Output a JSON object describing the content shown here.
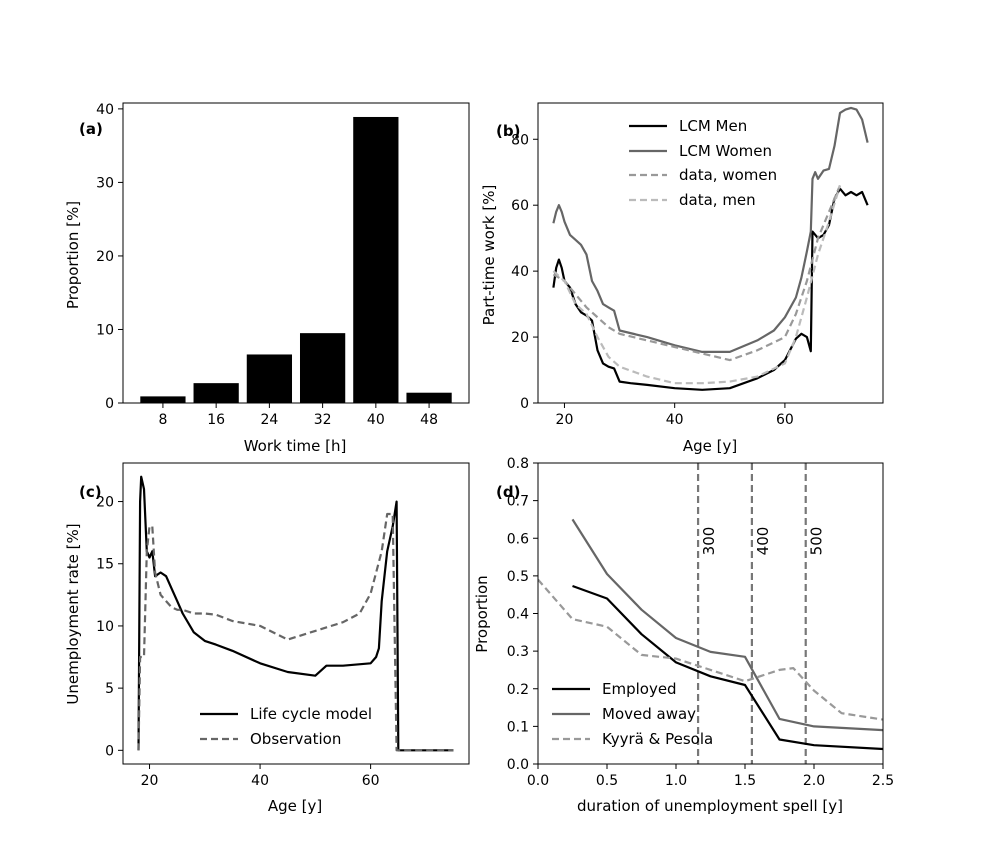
{
  "chart_data": [
    {
      "id": "a",
      "panel_label": "(a)",
      "type": "bar",
      "categories": [
        "8",
        "16",
        "24",
        "32",
        "40",
        "48"
      ],
      "values": [
        0.9,
        2.7,
        6.6,
        9.5,
        38.9,
        1.4
      ],
      "xlabel": "Work time [h]",
      "ylabel": "Proportion [%]",
      "ylim": [
        0,
        40.8
      ],
      "yticks": [
        0,
        10,
        20,
        30,
        40
      ],
      "color": "#000000"
    },
    {
      "id": "b",
      "panel_label": "(b)",
      "type": "line",
      "xlabel": "Age [y]",
      "ylabel": "Part-time work [%]",
      "xlim": [
        15.2,
        77.8
      ],
      "ylim": [
        0,
        91
      ],
      "xticks": [
        20,
        40,
        60
      ],
      "yticks": [
        0,
        20,
        40,
        60,
        80
      ],
      "legend_position": "top-center",
      "series": [
        {
          "name": "LCM Men",
          "color": "#000000",
          "dash": "solid",
          "points": [
            [
              18,
              35
            ],
            [
              18.5,
              41
            ],
            [
              19,
              43.5
            ],
            [
              19.5,
              41
            ],
            [
              20,
              37
            ],
            [
              21,
              35
            ],
            [
              22,
              30
            ],
            [
              23,
              27.5
            ],
            [
              24,
              26.5
            ],
            [
              25,
              25
            ],
            [
              26,
              16
            ],
            [
              27,
              12
            ],
            [
              28,
              11
            ],
            [
              29,
              10.5
            ],
            [
              30,
              6.5
            ],
            [
              32,
              6
            ],
            [
              35,
              5.5
            ],
            [
              40,
              4.5
            ],
            [
              45,
              4
            ],
            [
              50,
              4.5
            ],
            [
              55,
              7.5
            ],
            [
              58,
              10
            ],
            [
              60,
              13
            ],
            [
              62,
              19.5
            ],
            [
              63,
              21
            ],
            [
              64,
              20
            ],
            [
              64.7,
              15.7
            ],
            [
              65,
              52
            ],
            [
              66,
              50
            ],
            [
              67,
              51
            ],
            [
              68,
              54
            ],
            [
              69,
              62
            ],
            [
              70,
              65
            ],
            [
              71,
              63
            ],
            [
              72,
              64
            ],
            [
              73,
              63
            ],
            [
              74,
              64
            ],
            [
              75,
              60
            ]
          ]
        },
        {
          "name": "LCM Women",
          "color": "#666666",
          "dash": "solid",
          "points": [
            [
              18,
              54.5
            ],
            [
              18.5,
              58
            ],
            [
              19,
              60
            ],
            [
              19.5,
              58
            ],
            [
              20,
              55
            ],
            [
              21,
              51
            ],
            [
              22,
              49.5
            ],
            [
              23,
              48
            ],
            [
              24,
              45
            ],
            [
              25,
              37
            ],
            [
              26,
              34
            ],
            [
              27,
              30
            ],
            [
              28,
              29
            ],
            [
              29,
              28
            ],
            [
              30,
              22
            ],
            [
              35,
              20
            ],
            [
              40,
              17.5
            ],
            [
              45,
              15.5
            ],
            [
              50,
              15.5
            ],
            [
              55,
              19
            ],
            [
              58,
              22
            ],
            [
              60,
              26
            ],
            [
              62,
              32
            ],
            [
              63,
              38
            ],
            [
              64,
              46
            ],
            [
              64.7,
              52
            ],
            [
              65,
              68
            ],
            [
              65.5,
              70
            ],
            [
              66,
              68
            ],
            [
              67,
              70.5
            ],
            [
              68,
              71
            ],
            [
              69,
              78
            ],
            [
              70,
              88
            ],
            [
              71,
              89
            ],
            [
              72,
              89.5
            ],
            [
              73,
              89
            ],
            [
              74,
              86
            ],
            [
              75,
              79
            ]
          ]
        },
        {
          "name": "data, women",
          "color": "#999999",
          "dash": "dashed",
          "points": [
            [
              18,
              39
            ],
            [
              20,
              37
            ],
            [
              22,
              33
            ],
            [
              24,
              29
            ],
            [
              26,
              26
            ],
            [
              28,
              23
            ],
            [
              30,
              21
            ],
            [
              35,
              19
            ],
            [
              40,
              17
            ],
            [
              45,
              15
            ],
            [
              50,
              13
            ],
            [
              55,
              16
            ],
            [
              60,
              20
            ],
            [
              62,
              27
            ],
            [
              64,
              37
            ],
            [
              66,
              50
            ],
            [
              68,
              58
            ],
            [
              70,
              66
            ]
          ]
        },
        {
          "name": "data, men",
          "color": "#bbbbbb",
          "dash": "dashed",
          "points": [
            [
              18,
              40
            ],
            [
              20,
              37
            ],
            [
              22,
              30
            ],
            [
              24,
              27
            ],
            [
              26,
              20
            ],
            [
              28,
              14
            ],
            [
              30,
              11
            ],
            [
              35,
              8
            ],
            [
              40,
              6
            ],
            [
              45,
              6
            ],
            [
              50,
              6.5
            ],
            [
              55,
              8
            ],
            [
              60,
              12
            ],
            [
              62,
              20
            ],
            [
              64,
              32
            ],
            [
              66,
              45
            ],
            [
              68,
              55
            ],
            [
              70,
              66
            ]
          ]
        }
      ]
    },
    {
      "id": "c",
      "panel_label": "(c)",
      "type": "line",
      "xlabel": "Age [y]",
      "ylabel": "Unemployment rate [%]",
      "xlim": [
        15.2,
        77.8
      ],
      "ylim": [
        -1.1,
        23.1
      ],
      "xticks": [
        20,
        40,
        60
      ],
      "yticks": [
        0,
        5,
        10,
        15,
        20
      ],
      "legend_position": "bottom-center",
      "series": [
        {
          "name": "Life cycle model",
          "color": "#000000",
          "dash": "solid",
          "points": [
            [
              18,
              0
            ],
            [
              18.3,
              20
            ],
            [
              18.5,
              22
            ],
            [
              19,
              21
            ],
            [
              19.5,
              16
            ],
            [
              20,
              15.5
            ],
            [
              20.5,
              16
            ],
            [
              21,
              14
            ],
            [
              22,
              14.3
            ],
            [
              23,
              14
            ],
            [
              24,
              13
            ],
            [
              25,
              12
            ],
            [
              26,
              11
            ],
            [
              28,
              9.5
            ],
            [
              30,
              8.8
            ],
            [
              32,
              8.5
            ],
            [
              35,
              8
            ],
            [
              40,
              7
            ],
            [
              45,
              6.3
            ],
            [
              50,
              6
            ],
            [
              52,
              6.8
            ],
            [
              55,
              6.8
            ],
            [
              60,
              7
            ],
            [
              61,
              7.5
            ],
            [
              61.5,
              8.2
            ],
            [
              62,
              12
            ],
            [
              63,
              16
            ],
            [
              64,
              18
            ],
            [
              64.7,
              20
            ],
            [
              65,
              0
            ],
            [
              70,
              0
            ],
            [
              75,
              0
            ]
          ]
        },
        {
          "name": "Observation",
          "color": "#666666",
          "dash": "dashed",
          "points": [
            [
              18,
              0
            ],
            [
              18.3,
              7.5
            ],
            [
              19,
              7.5
            ],
            [
              19.5,
              16
            ],
            [
              20,
              18
            ],
            [
              20.5,
              18
            ],
            [
              21,
              14.3
            ],
            [
              22,
              12.5
            ],
            [
              23,
              12
            ],
            [
              24,
              11.5
            ],
            [
              25,
              11.3
            ],
            [
              26,
              11.3
            ],
            [
              28,
              11
            ],
            [
              30,
              11
            ],
            [
              32,
              10.9
            ],
            [
              35,
              10.4
            ],
            [
              40,
              10
            ],
            [
              45,
              8.9
            ],
            [
              50,
              9.6
            ],
            [
              55,
              10.3
            ],
            [
              58,
              11
            ],
            [
              60,
              12.6
            ],
            [
              62,
              16
            ],
            [
              63,
              19
            ],
            [
              64,
              19
            ],
            [
              64.7,
              0
            ],
            [
              65,
              0
            ],
            [
              70,
              0
            ],
            [
              75,
              0
            ]
          ]
        }
      ]
    },
    {
      "id": "d",
      "panel_label": "(d)",
      "type": "line",
      "xlabel": "duration of unemployment spell [y]",
      "ylabel": "Proportion",
      "xlim": [
        0,
        2.5
      ],
      "ylim": [
        0,
        0.8
      ],
      "xticks": [
        0.0,
        0.5,
        1.0,
        1.5,
        2.0,
        2.5
      ],
      "xtick_labels": [
        "0.0",
        "0.5",
        "1.0",
        "1.5",
        "2.0",
        "2.5"
      ],
      "yticks": [
        0.0,
        0.1,
        0.2,
        0.3,
        0.4,
        0.5,
        0.6,
        0.7,
        0.8
      ],
      "ytick_labels": [
        "0.0",
        "0.1",
        "0.2",
        "0.3",
        "0.4",
        "0.5",
        "0.6",
        "0.7",
        "0.8"
      ],
      "legend_position": "bottom-left",
      "vlines": [
        {
          "x": 1.16,
          "label": "300"
        },
        {
          "x": 1.55,
          "label": "400"
        },
        {
          "x": 1.94,
          "label": "500"
        }
      ],
      "series": [
        {
          "name": "Employed",
          "color": "#000000",
          "dash": "solid",
          "points": [
            [
              0.25,
              0.473
            ],
            [
              0.5,
              0.44
            ],
            [
              0.75,
              0.345
            ],
            [
              1.0,
              0.27
            ],
            [
              1.25,
              0.233
            ],
            [
              1.5,
              0.21
            ],
            [
              1.75,
              0.065
            ],
            [
              2.0,
              0.05
            ],
            [
              2.5,
              0.04
            ]
          ]
        },
        {
          "name": "Moved away",
          "color": "#666666",
          "dash": "solid",
          "points": [
            [
              0.25,
              0.65
            ],
            [
              0.5,
              0.505
            ],
            [
              0.75,
              0.41
            ],
            [
              1.0,
              0.335
            ],
            [
              1.25,
              0.298
            ],
            [
              1.5,
              0.285
            ],
            [
              1.75,
              0.12
            ],
            [
              2.0,
              0.1
            ],
            [
              2.5,
              0.09
            ]
          ]
        },
        {
          "name": "Kyyrä & Pesola",
          "color": "#999999",
          "dash": "dashed",
          "points": [
            [
              0.0,
              0.49
            ],
            [
              0.25,
              0.385
            ],
            [
              0.5,
              0.365
            ],
            [
              0.75,
              0.29
            ],
            [
              1.0,
              0.28
            ],
            [
              1.25,
              0.25
            ],
            [
              1.5,
              0.22
            ],
            [
              1.75,
              0.25
            ],
            [
              1.85,
              0.255
            ],
            [
              2.0,
              0.195
            ],
            [
              2.2,
              0.135
            ],
            [
              2.5,
              0.118
            ]
          ]
        }
      ]
    }
  ]
}
